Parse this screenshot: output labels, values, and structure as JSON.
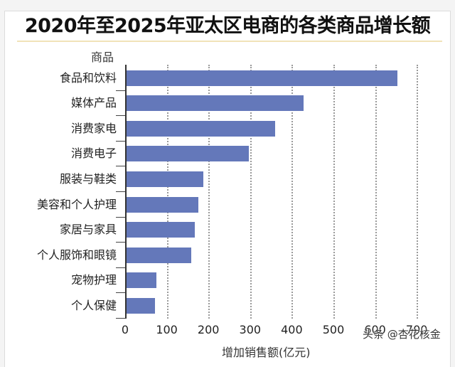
{
  "chart_data": {
    "type": "bar",
    "orientation": "horizontal",
    "title": "2020年至2025年亚太区电商的各类商品增长额",
    "ylabel": "商品",
    "xlabel": "增加销售额(亿元)",
    "categories": [
      "食品和饮料",
      "媒体产品",
      "消费家电",
      "消费电子",
      "服装与鞋类",
      "美容和个人护理",
      "家居与家具",
      "个人服饰和眼镜",
      "宠物护理",
      "个人保健"
    ],
    "values": [
      650,
      425,
      356,
      294,
      184,
      172,
      164,
      155,
      71,
      68
    ],
    "xlim": [
      0,
      700
    ],
    "xticks": [
      0,
      100,
      200,
      300,
      400,
      500,
      600,
      700
    ],
    "grid": "vertical dotted",
    "bar_color": "#6478ba",
    "legend": null
  },
  "title": "2020年至2025年亚太区电商的各类商品增长额",
  "ylabel": "商品",
  "xlabel": "增加销售额(亿元)",
  "xticks": [
    "0",
    "100",
    "200",
    "300",
    "400",
    "500",
    "600",
    "700"
  ],
  "categories": [
    "食品和饮料",
    "媒体产品",
    "消费家电",
    "消费电子",
    "服装与鞋类",
    "美容和个人护理",
    "家居与家具",
    "个人服饰和眼镜",
    "宠物护理",
    "个人保健"
  ],
  "watermark": "头条 @杏花核金"
}
